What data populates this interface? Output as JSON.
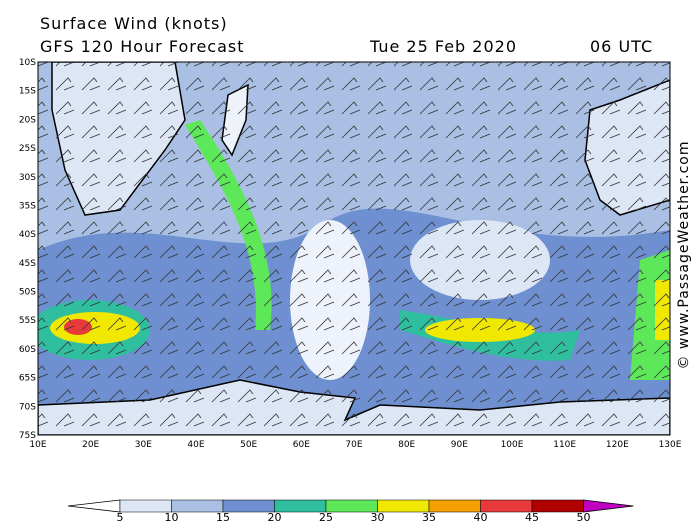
{
  "header": {
    "title": "Surface Wind (knots)",
    "subtitle": "GFS 120 Hour Forecast",
    "date": "Tue 25 Feb 2020",
    "time": "06 UTC"
  },
  "lat_labels": [
    "10S",
    "15S",
    "20S",
    "25S",
    "30S",
    "35S",
    "40S",
    "45S",
    "50S",
    "55S",
    "60S",
    "65S",
    "70S",
    "75S"
  ],
  "lon_labels": [
    "10E",
    "20E",
    "30E",
    "40E",
    "50E",
    "60E",
    "70E",
    "80E",
    "90E",
    "100E",
    "110E",
    "120E",
    "130E"
  ],
  "colorbar": {
    "labels": [
      "5",
      "10",
      "15",
      "20",
      "25",
      "30",
      "35",
      "40",
      "45",
      "50"
    ]
  },
  "copyright": "© www.PassageWeather.com"
}
